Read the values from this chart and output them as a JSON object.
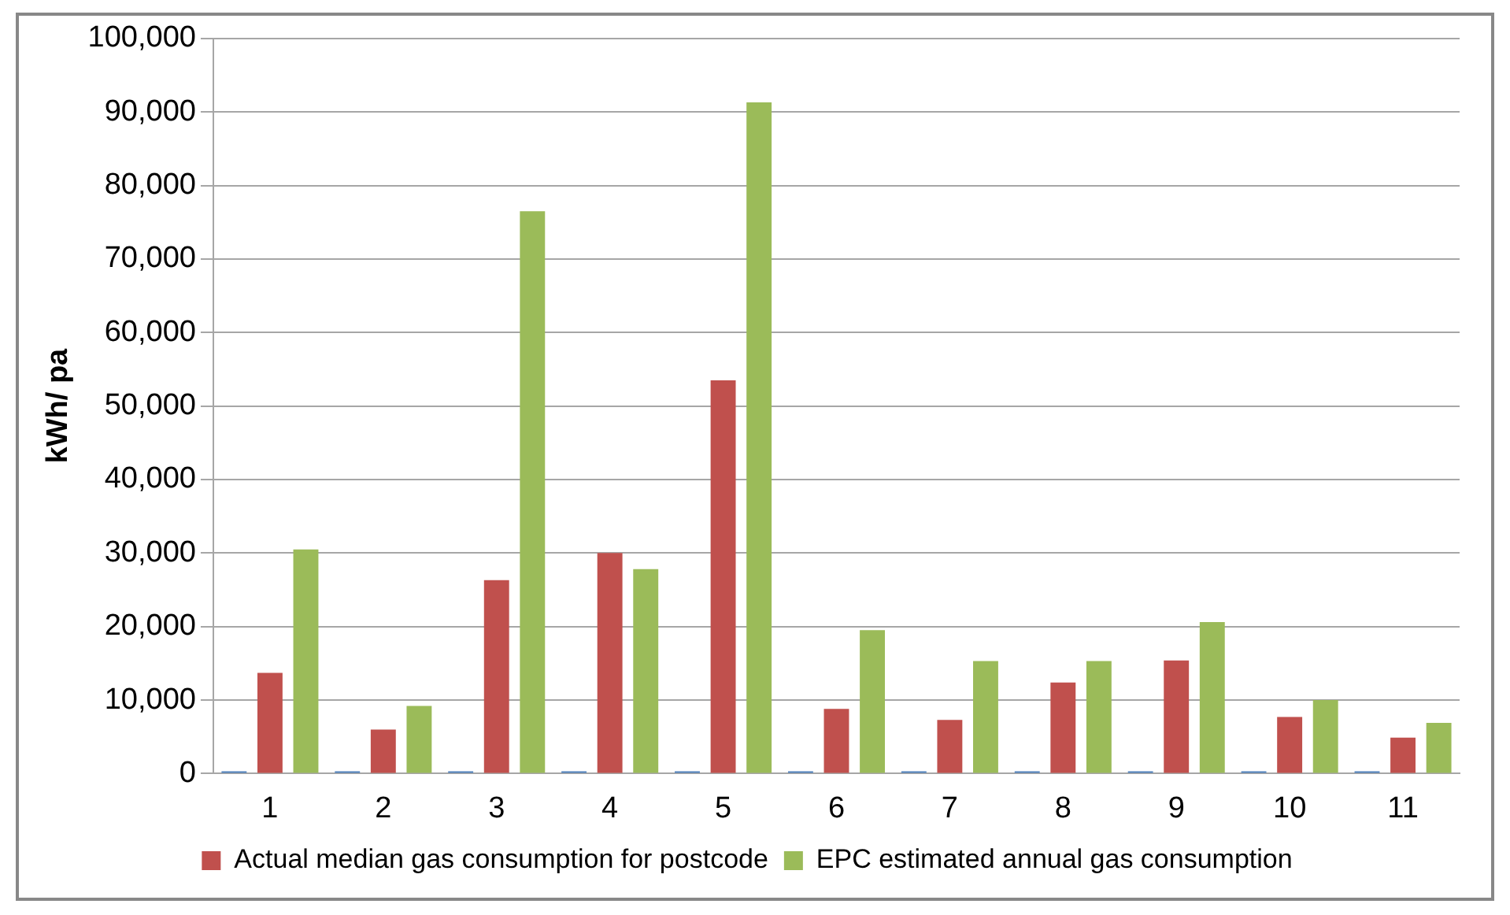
{
  "chart_data": {
    "type": "bar",
    "ylabel": "kWh/ pa",
    "categories": [
      "1",
      "2",
      "3",
      "4",
      "5",
      "6",
      "7",
      "8",
      "9",
      "10",
      "11"
    ],
    "series": [
      {
        "color": "#4f81bd",
        "values": [
          300,
          300,
          300,
          300,
          300,
          300,
          300,
          300,
          300,
          300,
          300
        ]
      },
      {
        "name": "Actual median gas consumption for postcode",
        "color": "#c0504d",
        "values": [
          13700,
          6000,
          26300,
          30000,
          53500,
          8800,
          7300,
          12400,
          15400,
          7700,
          4900
        ]
      },
      {
        "name": "EPC estimated annual gas consumption",
        "color": "#9bbb59",
        "values": [
          30500,
          9200,
          76500,
          27800,
          91300,
          19500,
          15300,
          15300,
          20600,
          10000,
          6900
        ]
      }
    ],
    "ylim": [
      0,
      100000
    ],
    "yticks": [
      0,
      {
        "value": 10000,
        "label": "10,000"
      },
      {
        "value": 20000,
        "label": "20,000"
      },
      {
        "value": 30000,
        "label": "30,000"
      },
      {
        "value": 40000,
        "label": "40,000"
      },
      {
        "value": 50000,
        "label": "50,000"
      },
      {
        "value": 60000,
        "label": "60,000"
      },
      {
        "value": 70000,
        "label": "70,000"
      },
      {
        "value": 80000,
        "label": "80,000"
      },
      {
        "value": 90000,
        "label": "90,000"
      },
      {
        "value": 100000,
        "label": "100,000"
      }
    ],
    "grid": "y",
    "legend": "bottom"
  }
}
